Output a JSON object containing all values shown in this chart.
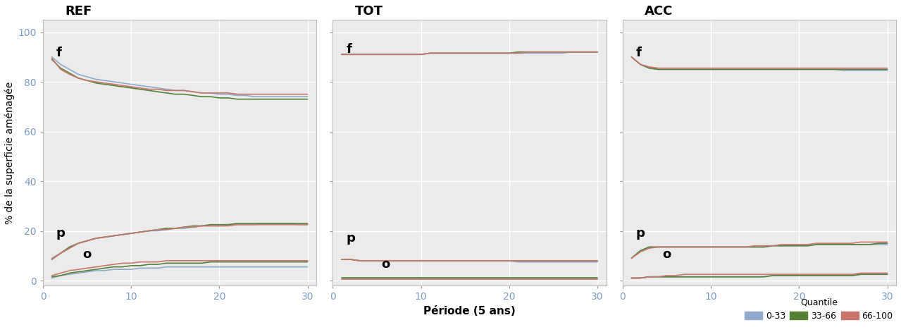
{
  "panels": [
    "REF",
    "TOT",
    "ACC"
  ],
  "ylabel": "% de la superficie aménagée",
  "xlabel": "Période (5 ans)",
  "quantile_colors": {
    "0-33": "#8FAACC",
    "33-66": "#548235",
    "66-100": "#C9756A"
  },
  "quantile_labels": [
    "0-33",
    "33-66",
    "66-100"
  ],
  "x": [
    1,
    2,
    3,
    4,
    5,
    6,
    7,
    8,
    9,
    10,
    11,
    12,
    13,
    14,
    15,
    16,
    17,
    18,
    19,
    20,
    21,
    22,
    23,
    24,
    25,
    26,
    27,
    28,
    29,
    30
  ],
  "REF": {
    "f": {
      "0-33": [
        90,
        87,
        85,
        83,
        82,
        81,
        80.5,
        80,
        79.5,
        79,
        78.5,
        78,
        77.5,
        77,
        76.5,
        76.5,
        76,
        75.5,
        75.5,
        75,
        75,
        74.5,
        74.5,
        74,
        74,
        74,
        74,
        74,
        74,
        74
      ],
      "33-66": [
        89,
        85.5,
        83.5,
        81.5,
        80.5,
        79.5,
        79,
        78.5,
        78,
        77.5,
        77,
        76.5,
        76,
        75.5,
        75,
        75,
        74.5,
        74,
        74,
        73.5,
        73.5,
        73,
        73,
        73,
        73,
        73,
        73,
        73,
        73,
        73
      ],
      "66-100": [
        89.5,
        85,
        83,
        81.5,
        80.5,
        80,
        79.5,
        79,
        78.5,
        78,
        77.5,
        77,
        77,
        76.5,
        76.5,
        76.5,
        76,
        75.5,
        75.5,
        75.5,
        75.5,
        75,
        75,
        75,
        75,
        75,
        75,
        75,
        75,
        75
      ]
    },
    "p": {
      "0-33": [
        9,
        11,
        13,
        15,
        16,
        17,
        17.5,
        18,
        18.5,
        19,
        19.5,
        20,
        20,
        20.5,
        21,
        21,
        21.5,
        22,
        22,
        22,
        22.5,
        22.5,
        22.5,
        22.5,
        23,
        23,
        23,
        23,
        22.5,
        22.5
      ],
      "33-66": [
        8.5,
        11,
        13.5,
        15,
        16,
        17,
        17.5,
        18,
        18.5,
        19,
        19.5,
        20,
        20.5,
        21,
        21,
        21.5,
        22,
        22,
        22.5,
        22.5,
        22.5,
        23,
        23,
        23,
        23,
        23,
        23,
        23,
        23,
        23
      ],
      "66-100": [
        8.5,
        11,
        13,
        15,
        16,
        17,
        17.5,
        18,
        18.5,
        19,
        19.5,
        20,
        20.5,
        20.5,
        21,
        21.5,
        21.5,
        22,
        22,
        22,
        22,
        22.5,
        22.5,
        22.5,
        22.5,
        22.5,
        22.5,
        22.5,
        22.5,
        22.5
      ]
    },
    "o": {
      "0-33": [
        1,
        2,
        2.5,
        3,
        3.5,
        4,
        4,
        4.5,
        4.5,
        4.5,
        5,
        5,
        5,
        5.5,
        5.5,
        5.5,
        5.5,
        5.5,
        5.5,
        5.5,
        5.5,
        5.5,
        5.5,
        5.5,
        5.5,
        5.5,
        5.5,
        5.5,
        5.5,
        5.5
      ],
      "33-66": [
        1.5,
        2,
        3,
        3.5,
        4,
        4.5,
        5,
        5.5,
        5.5,
        6,
        6,
        6.5,
        6.5,
        7,
        7,
        7,
        7,
        7,
        7.5,
        7.5,
        7.5,
        7.5,
        7.5,
        7.5,
        7.5,
        7.5,
        7.5,
        7.5,
        7.5,
        7.5
      ],
      "66-100": [
        2,
        3,
        4,
        4.5,
        5,
        5.5,
        6,
        6.5,
        7,
        7,
        7.5,
        7.5,
        7.5,
        8,
        8,
        8,
        8,
        8,
        8,
        8,
        8,
        8,
        8,
        8,
        8,
        8,
        8,
        8,
        8,
        8
      ]
    }
  },
  "TOT": {
    "f": {
      "0-33": [
        91,
        91,
        91,
        91,
        91,
        91,
        91,
        91,
        91,
        91,
        91.5,
        91.5,
        91.5,
        91.5,
        91.5,
        91.5,
        91.5,
        91.5,
        91.5,
        91.5,
        91.5,
        91.5,
        91.5,
        91.5,
        91.5,
        91.5,
        92,
        92,
        92,
        92
      ],
      "33-66": [
        91,
        91,
        91,
        91,
        91,
        91,
        91,
        91,
        91,
        91,
        91.5,
        91.5,
        91.5,
        91.5,
        91.5,
        91.5,
        91.5,
        91.5,
        91.5,
        91.5,
        92,
        92,
        92,
        92,
        92,
        92,
        92,
        92,
        92,
        92
      ],
      "66-100": [
        91,
        91,
        91,
        91,
        91,
        91,
        91,
        91,
        91,
        91,
        91.5,
        91.5,
        91.5,
        91.5,
        91.5,
        91.5,
        91.5,
        91.5,
        91.5,
        91.5,
        91.5,
        92,
        92,
        92,
        92,
        92,
        92,
        92,
        92,
        92
      ]
    },
    "p": {
      "0-33": [
        8.5,
        8.5,
        8,
        8,
        8,
        8,
        8,
        8,
        8,
        8,
        8,
        8,
        8,
        8,
        8,
        8,
        8,
        8,
        8,
        8,
        7.5,
        7.5,
        7.5,
        7.5,
        7.5,
        7.5,
        7.5,
        7.5,
        7.5,
        7.5
      ],
      "33-66": [
        8.5,
        8.5,
        8,
        8,
        8,
        8,
        8,
        8,
        8,
        8,
        8,
        8,
        8,
        8,
        8,
        8,
        8,
        8,
        8,
        8,
        8,
        8,
        8,
        8,
        8,
        8,
        8,
        8,
        8,
        8
      ],
      "66-100": [
        8.5,
        8.5,
        8,
        8,
        8,
        8,
        8,
        8,
        8,
        8,
        8,
        8,
        8,
        8,
        8,
        8,
        8,
        8,
        8,
        8,
        8,
        8,
        8,
        8,
        8,
        8,
        8,
        8,
        8,
        8
      ]
    },
    "o": {
      "0-33": [
        0.5,
        0.5,
        0.5,
        0.5,
        0.5,
        0.5,
        0.5,
        0.5,
        0.5,
        0.5,
        0.5,
        0.5,
        0.5,
        0.5,
        0.5,
        0.5,
        0.5,
        0.5,
        0.5,
        0.5,
        0.5,
        0.5,
        0.5,
        0.5,
        0.5,
        0.5,
        0.5,
        0.5,
        0.5,
        0.5
      ],
      "33-66": [
        1,
        1,
        1,
        1,
        1,
        1,
        1,
        1,
        1,
        1,
        1,
        1,
        1,
        1,
        1,
        1,
        1,
        1,
        1,
        1,
        1,
        1,
        1,
        1,
        1,
        1,
        1,
        1,
        1,
        1
      ],
      "66-100": [
        0.5,
        0.5,
        0.5,
        0.5,
        0.5,
        0.5,
        0.5,
        0.5,
        0.5,
        0.5,
        0.5,
        0.5,
        0.5,
        0.5,
        0.5,
        0.5,
        0.5,
        0.5,
        0.5,
        0.5,
        0.5,
        0.5,
        0.5,
        0.5,
        0.5,
        0.5,
        0.5,
        0.5,
        0.5,
        0.5
      ]
    }
  },
  "ACC": {
    "f": {
      "0-33": [
        90,
        87,
        85.5,
        85,
        85,
        85,
        85,
        85,
        85,
        85,
        85,
        85,
        85,
        85,
        85,
        85,
        85,
        85,
        85,
        85,
        85,
        85,
        85,
        85,
        84.5,
        84.5,
        84.5,
        84.5,
        84.5,
        84.5
      ],
      "33-66": [
        90,
        87,
        85.5,
        85,
        85,
        85,
        85,
        85,
        85,
        85,
        85,
        85,
        85,
        85,
        85,
        85,
        85,
        85,
        85,
        85,
        85,
        85,
        85,
        85,
        85,
        85,
        85,
        85,
        85,
        85
      ],
      "66-100": [
        90,
        87,
        86,
        85.5,
        85.5,
        85.5,
        85.5,
        85.5,
        85.5,
        85.5,
        85.5,
        85.5,
        85.5,
        85.5,
        85.5,
        85.5,
        85.5,
        85.5,
        85.5,
        85.5,
        85.5,
        85.5,
        85.5,
        85.5,
        85.5,
        85.5,
        85.5,
        85.5,
        85.5,
        85.5
      ]
    },
    "p": {
      "0-33": [
        9,
        12,
        13.5,
        13.5,
        13.5,
        13.5,
        13.5,
        13.5,
        13.5,
        13.5,
        13.5,
        13.5,
        13.5,
        13.5,
        13.5,
        13.5,
        14,
        14,
        14,
        14,
        14,
        14.5,
        14.5,
        14.5,
        14.5,
        14.5,
        14.5,
        14.5,
        14.5,
        14.5
      ],
      "33-66": [
        9,
        12,
        13.5,
        13.5,
        13.5,
        13.5,
        13.5,
        13.5,
        13.5,
        13.5,
        13.5,
        13.5,
        13.5,
        13.5,
        13.5,
        13.5,
        14,
        14,
        14,
        14,
        14,
        14.5,
        14.5,
        14.5,
        14.5,
        14.5,
        14.5,
        14.5,
        15,
        15
      ],
      "66-100": [
        9,
        11.5,
        13,
        13.5,
        13.5,
        13.5,
        13.5,
        13.5,
        13.5,
        13.5,
        13.5,
        13.5,
        13.5,
        13.5,
        14,
        14,
        14,
        14.5,
        14.5,
        14.5,
        14.5,
        15,
        15,
        15,
        15,
        15,
        15.5,
        15.5,
        15.5,
        15.5
      ]
    },
    "o": {
      "0-33": [
        1,
        1,
        1.5,
        1.5,
        1.5,
        1.5,
        1.5,
        1.5,
        1.5,
        1.5,
        1.5,
        1.5,
        1.5,
        1.5,
        1.5,
        1.5,
        2,
        2,
        2,
        2,
        2,
        2,
        2,
        2,
        2,
        2,
        2.5,
        2.5,
        2.5,
        2.5
      ],
      "33-66": [
        1,
        1,
        1.5,
        1.5,
        1.5,
        1.5,
        1.5,
        1.5,
        1.5,
        1.5,
        1.5,
        1.5,
        1.5,
        1.5,
        1.5,
        1.5,
        2,
        2,
        2,
        2,
        2,
        2,
        2,
        2,
        2,
        2,
        2.5,
        2.5,
        2.5,
        2.5
      ],
      "66-100": [
        1,
        1,
        1.5,
        1.5,
        2,
        2,
        2.5,
        2.5,
        2.5,
        2.5,
        2.5,
        2.5,
        2.5,
        2.5,
        2.5,
        2.5,
        2.5,
        2.5,
        2.5,
        2.5,
        2.5,
        2.5,
        2.5,
        2.5,
        2.5,
        2.5,
        3,
        3,
        3,
        3
      ]
    }
  },
  "label_positions": {
    "REF": {
      "f": [
        1.5,
        91.5
      ],
      "p": [
        1.5,
        19
      ],
      "o": [
        4.5,
        10.5
      ]
    },
    "TOT": {
      "f": [
        1.5,
        93
      ],
      "p": [
        1.5,
        17
      ],
      "o": [
        5.5,
        6.5
      ]
    },
    "ACC": {
      "f": [
        1.5,
        91.5
      ],
      "p": [
        1.5,
        19
      ],
      "o": [
        4.5,
        10.5
      ]
    }
  },
  "background_color": "#EBEBEB",
  "grid_color": "#FFFFFF",
  "tick_color": "#7B9BC8",
  "title_fontsize": 13,
  "axis_fontsize": 10,
  "label_fontsize": 13,
  "line_width": 1.2,
  "ylim": [
    -2,
    105
  ],
  "xlim": [
    0,
    31
  ],
  "yticks": [
    0,
    20,
    40,
    60,
    80,
    100
  ],
  "xticks": [
    0,
    10,
    20,
    30
  ]
}
